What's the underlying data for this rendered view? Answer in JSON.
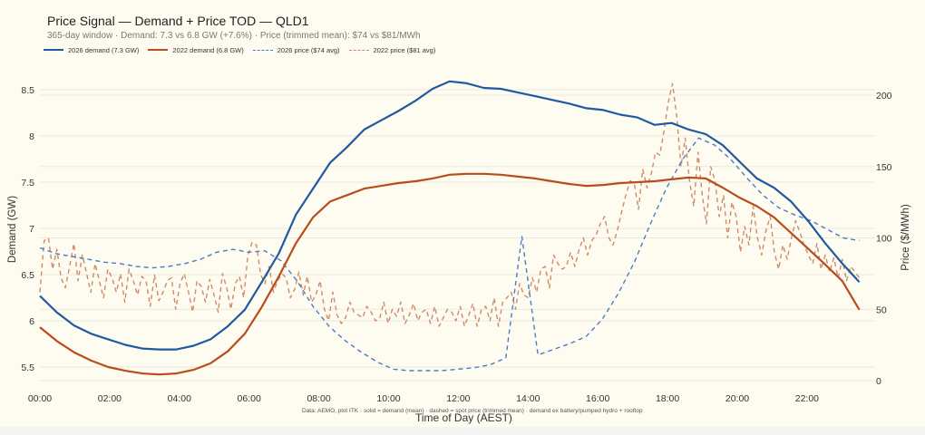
{
  "header": {
    "title": "Price Signal — Demand + Price TOD — QLD1",
    "subtitle": "365-day window · Demand: 7.3 vs 6.8 GW (+7.6%) · Price (trimmed mean): $74 vs $81/MWh"
  },
  "footnote": "Data: AEMO, plot ITK · solid = demand (mean) · dashed = spot price (trimmed mean) · demand ex battery/pumped hydro + rooftop",
  "chart_data": {
    "type": "line",
    "title": "Price Signal — Demand + Price TOD — QLD1",
    "subtitle": "365-day window · Demand: 7.3 vs 6.8 GW (+7.6%) · Price (trimmed mean): $74 vs $81/MWh",
    "xlabel": "Time of Day (AEST)",
    "ylabel": "Demand (GW)",
    "ylabel_right": "Price ($/MWh)",
    "ylim": [
      5.33,
      8.7
    ],
    "ylim_right": [
      0,
      215
    ],
    "xlim_hours": [
      0,
      23.5
    ],
    "x_ticks": [
      "00:00",
      "02:00",
      "04:00",
      "06:00",
      "08:00",
      "10:00",
      "12:00",
      "14:00",
      "16:00",
      "18:00",
      "20:00",
      "22:00"
    ],
    "y_ticks": [
      "5.5",
      "6",
      "6.5",
      "7",
      "7.5",
      "8",
      "8.5"
    ],
    "y_ticks_right": [
      "0",
      "50",
      "100",
      "150",
      "200"
    ],
    "grid": true,
    "legend_position": "top-left",
    "series": [
      {
        "name": "2026 demand (7.3 GW)",
        "axis": "left",
        "style": "solid",
        "color": "#1f5aa0",
        "x_step_hours": 0.5,
        "values": [
          6.27,
          6.09,
          5.95,
          5.86,
          5.8,
          5.74,
          5.7,
          5.69,
          5.69,
          5.73,
          5.8,
          5.94,
          6.12,
          6.42,
          6.73,
          7.15,
          7.43,
          7.71,
          7.88,
          8.07,
          8.17,
          8.27,
          8.38,
          8.51,
          8.59,
          8.57,
          8.52,
          8.51,
          8.47,
          8.43,
          8.39,
          8.35,
          8.3,
          8.28,
          8.23,
          8.2,
          8.12,
          8.14,
          8.07,
          8.02,
          7.9,
          7.72,
          7.54,
          7.44,
          7.29,
          7.08,
          6.84,
          6.62,
          6.42
        ]
      },
      {
        "name": "2022 demand (6.8 GW)",
        "axis": "left",
        "style": "solid",
        "color": "#b84c1c",
        "x_step_hours": 0.5,
        "values": [
          5.93,
          5.78,
          5.66,
          5.57,
          5.5,
          5.46,
          5.43,
          5.42,
          5.43,
          5.47,
          5.54,
          5.67,
          5.86,
          6.15,
          6.48,
          6.84,
          7.12,
          7.29,
          7.36,
          7.43,
          7.46,
          7.49,
          7.51,
          7.54,
          7.58,
          7.59,
          7.59,
          7.58,
          7.56,
          7.54,
          7.51,
          7.48,
          7.46,
          7.47,
          7.49,
          7.5,
          7.51,
          7.53,
          7.55,
          7.54,
          7.44,
          7.33,
          7.24,
          7.12,
          6.95,
          6.78,
          6.61,
          6.43,
          6.12
        ]
      },
      {
        "name": "2026 price ($74 avg)",
        "axis": "right",
        "style": "dashed",
        "color": "#4a7cc4",
        "x_step_hours": 0.5,
        "values": [
          93,
          89,
          87,
          85,
          83,
          82,
          80,
          79,
          80,
          82,
          85,
          90,
          92,
          90,
          91,
          84,
          70,
          52,
          38,
          28,
          20,
          13,
          8,
          7,
          7,
          7,
          8,
          9,
          11,
          16,
          101,
          18,
          22,
          26,
          31,
          43,
          61,
          83,
          110,
          135,
          155,
          170,
          165,
          155,
          142,
          130,
          121,
          116,
          112,
          106,
          100,
          98
        ]
      },
      {
        "name": "2022 price ($81 avg)",
        "axis": "right",
        "style": "dashed",
        "color": "#d08a68",
        "x_step_hours": 0.125,
        "values": [
          62,
          98,
          100,
          78,
          92,
          72,
          65,
          80,
          96,
          70,
          88,
          75,
          62,
          82,
          70,
          58,
          78,
          72,
          62,
          75,
          55,
          78,
          70,
          60,
          73,
          70,
          52,
          74,
          56,
          62,
          70,
          72,
          50,
          68,
          75,
          62,
          48,
          70,
          66,
          55,
          71,
          60,
          48,
          75,
          65,
          50,
          68,
          73,
          58,
          88,
          97,
          95,
          74,
          68,
          80,
          62,
          70,
          75,
          72,
          58,
          64,
          76,
          60,
          73,
          55,
          60,
          70,
          50,
          42,
          62,
          46,
          40,
          44,
          55,
          48,
          46,
          44,
          52,
          48,
          42,
          43,
          55,
          40,
          50,
          45,
          55,
          40,
          46,
          54,
          42,
          48,
          50,
          40,
          52,
          38,
          44,
          50,
          48,
          42,
          52,
          38,
          46,
          54,
          38,
          50,
          52,
          42,
          58,
          38,
          55,
          58,
          62,
          50,
          68,
          60,
          58,
          72,
          62,
          78,
          80,
          65,
          88,
          82,
          78,
          80,
          90,
          80,
          92,
          100,
          88,
          98,
          102,
          110,
          115,
          100,
          95,
          105,
          118,
          130,
          140,
          138,
          120,
          148,
          135,
          145,
          160,
          158,
          175,
          195,
          208,
          185,
          150,
          170,
          140,
          122,
          160,
          130,
          110,
          150,
          140,
          115,
          130,
          100,
          125,
          115,
          90,
          108,
          95,
          122,
          100,
          88,
          105,
          115,
          90,
          78,
          95,
          85,
          100,
          112,
          104,
          95,
          88,
          82,
          96,
          78,
          88,
          76,
          86,
          72,
          85,
          70,
          80,
          76,
          72
        ]
      }
    ]
  }
}
